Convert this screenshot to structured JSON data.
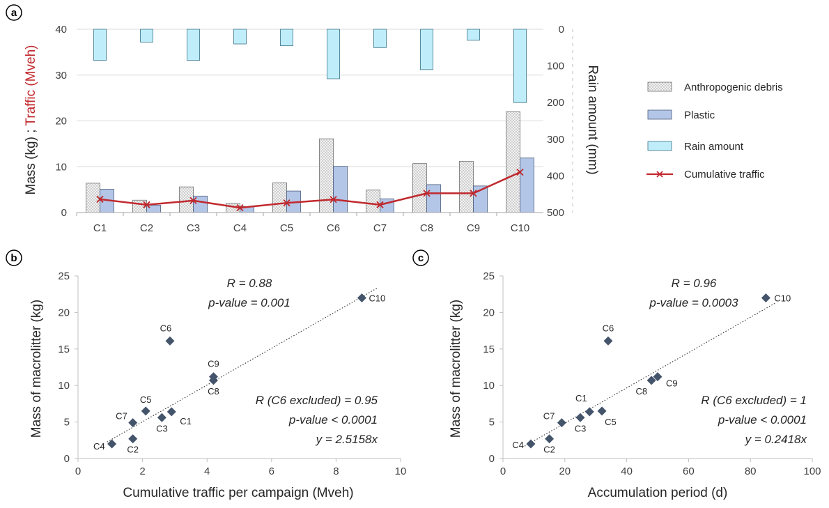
{
  "panels": {
    "a": "a",
    "b": "b",
    "c": "c"
  },
  "colors": {
    "anthropogenic": "#dcdcdc",
    "plastic": "#b4c6e7",
    "rain": "#bfeefa",
    "traffic": "#c0282d",
    "rain_axis": "#5bc6e8",
    "marker": "#44546a"
  },
  "chart_data": [
    {
      "id": "a",
      "type": "bar",
      "categories": [
        "C1",
        "C2",
        "C3",
        "C4",
        "C5",
        "C6",
        "C7",
        "C8",
        "C9",
        "C10"
      ],
      "series": [
        {
          "name": "Anthropogenic debris",
          "type": "bar",
          "axis": "left",
          "values": [
            6.4,
            2.7,
            5.6,
            2.0,
            6.5,
            16.1,
            4.9,
            10.7,
            11.2,
            22.0
          ]
        },
        {
          "name": "Plastic",
          "type": "bar",
          "axis": "left",
          "values": [
            5.1,
            1.6,
            3.6,
            1.3,
            4.7,
            10.1,
            3.0,
            6.1,
            5.8,
            11.9
          ]
        },
        {
          "name": "Rain amount",
          "type": "bar",
          "axis": "right-inverted",
          "values": [
            85,
            35,
            85,
            40,
            45,
            135,
            50,
            110,
            30,
            200
          ]
        },
        {
          "name": "Cumulative traffic",
          "type": "line",
          "axis": "left",
          "values": [
            2.9,
            1.7,
            2.6,
            1.05,
            2.1,
            2.85,
            1.7,
            4.2,
            4.2,
            8.8
          ]
        }
      ],
      "ylabel_parts": [
        "Mass (kg) ; ",
        "Traffic (Mveh)"
      ],
      "y2label": "Rain amount (mm)",
      "ylim": [
        0,
        40
      ],
      "yticks": [
        0,
        10,
        20,
        30,
        40
      ],
      "y2lim": [
        0,
        500
      ],
      "y2ticks": [
        0,
        100,
        200,
        300,
        400,
        500
      ],
      "legend_placement": "right"
    },
    {
      "id": "b",
      "type": "scatter",
      "points": [
        {
          "label": "C1",
          "x": 2.9,
          "y": 6.4
        },
        {
          "label": "C2",
          "x": 1.7,
          "y": 2.7
        },
        {
          "label": "C3",
          "x": 2.6,
          "y": 5.6
        },
        {
          "label": "C4",
          "x": 1.05,
          "y": 2.0
        },
        {
          "label": "C5",
          "x": 2.1,
          "y": 6.5
        },
        {
          "label": "C6",
          "x": 2.85,
          "y": 16.1
        },
        {
          "label": "C7",
          "x": 1.7,
          "y": 4.9
        },
        {
          "label": "C8",
          "x": 4.2,
          "y": 10.7
        },
        {
          "label": "C9",
          "x": 4.2,
          "y": 11.2
        },
        {
          "label": "C10",
          "x": 8.8,
          "y": 22.0
        }
      ],
      "trendline": {
        "slope": 2.5158,
        "x_range": [
          0.9,
          9.3
        ]
      },
      "xlabel": "Cumulative traffic per campaign (Mveh)",
      "ylabel": "Mass of macrolitter (kg)",
      "xlim": [
        0,
        10
      ],
      "xticks": [
        0,
        2,
        4,
        6,
        8,
        10
      ],
      "ylim": [
        0,
        25
      ],
      "yticks": [
        0,
        5,
        10,
        15,
        20,
        25
      ],
      "annotations_top": [
        "R = 0.88",
        "p-value = 0.001"
      ],
      "annotations_bottom": [
        "R (C6 excluded) = 0.95",
        "p-value < 0.0001",
        "y = 2.5158x"
      ]
    },
    {
      "id": "c",
      "type": "scatter",
      "points": [
        {
          "label": "C1",
          "x": 28,
          "y": 6.4
        },
        {
          "label": "C2",
          "x": 15,
          "y": 2.7
        },
        {
          "label": "C3",
          "x": 25,
          "y": 5.6
        },
        {
          "label": "C4",
          "x": 9,
          "y": 2.0
        },
        {
          "label": "C5",
          "x": 32,
          "y": 6.5
        },
        {
          "label": "C6",
          "x": 34,
          "y": 16.1
        },
        {
          "label": "C7",
          "x": 19,
          "y": 4.9
        },
        {
          "label": "C8",
          "x": 48,
          "y": 10.7
        },
        {
          "label": "C9",
          "x": 50,
          "y": 11.2
        },
        {
          "label": "C10",
          "x": 85,
          "y": 22.0
        }
      ],
      "trendline": {
        "slope": 0.2418,
        "x_range": [
          7,
          88
        ]
      },
      "xlabel": "Accumulation period (d)",
      "ylabel": "Mass of macrolitter (kg)",
      "xlim": [
        0,
        100
      ],
      "xticks": [
        0,
        20,
        40,
        60,
        80,
        100
      ],
      "ylim": [
        0,
        25
      ],
      "yticks": [
        0,
        5,
        10,
        15,
        20,
        25
      ],
      "annotations_top": [
        "R = 0.96",
        "p-value = 0.0003"
      ],
      "annotations_bottom": [
        "R (C6 excluded) = 1",
        "p-value < 0.0001",
        "y = 0.2418x"
      ]
    }
  ]
}
